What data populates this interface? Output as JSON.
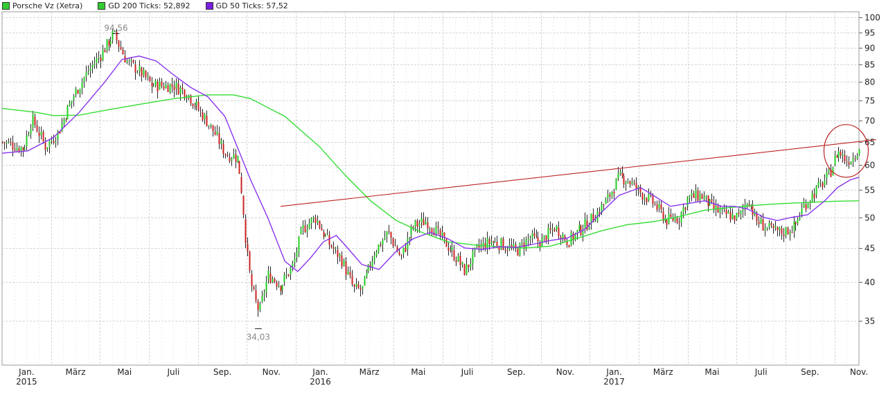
{
  "legend": [
    {
      "label": "Porsche Vz (Xetra)",
      "color": "#33cc33"
    },
    {
      "label": "GD 200 Ticks: 52,892",
      "color": "#33cc33"
    },
    {
      "label": "GD 50 Ticks: 57,52",
      "color": "#7a1fe0"
    }
  ],
  "chart_data": {
    "type": "candlestick",
    "title": "",
    "scale": "log",
    "ylim": [
      30,
      102
    ],
    "y_ticks": [
      100,
      95,
      90,
      85,
      80,
      75,
      70,
      65,
      60,
      55,
      50,
      45,
      40,
      35
    ],
    "x_tick_labels": [
      {
        "label": "Jan.",
        "year": "2015"
      },
      {
        "label": "März",
        "year": ""
      },
      {
        "label": "Mai",
        "year": ""
      },
      {
        "label": "Juli",
        "year": ""
      },
      {
        "label": "Sep.",
        "year": ""
      },
      {
        "label": "Nov.",
        "year": ""
      },
      {
        "label": "Jan.",
        "year": "2016"
      },
      {
        "label": "März",
        "year": ""
      },
      {
        "label": "Mai",
        "year": ""
      },
      {
        "label": "Juli",
        "year": ""
      },
      {
        "label": "Sep.",
        "year": ""
      },
      {
        "label": "Nov.",
        "year": ""
      },
      {
        "label": "Jan.",
        "year": "2017"
      },
      {
        "label": "März",
        "year": ""
      },
      {
        "label": "Mai",
        "year": ""
      },
      {
        "label": "Juli",
        "year": ""
      },
      {
        "label": "Sep.",
        "year": ""
      },
      {
        "label": "Nov.",
        "year": ""
      }
    ],
    "annotations": [
      {
        "text": "94,56",
        "kind": "high"
      },
      {
        "text": "34,03",
        "kind": "low"
      }
    ],
    "colors": {
      "up": "#22cc22",
      "down": "#cc2222",
      "gd200": "#33dd33",
      "gd50": "#8833ee",
      "trend": "#bb2222"
    },
    "price_path": [
      [
        0,
        65
      ],
      [
        0.025,
        63.5
      ],
      [
        0.035,
        70.5
      ],
      [
        0.05,
        64
      ],
      [
        0.065,
        67
      ],
      [
        0.075,
        72
      ],
      [
        0.085,
        77
      ],
      [
        0.1,
        83
      ],
      [
        0.115,
        88
      ],
      [
        0.13,
        94.5
      ],
      [
        0.145,
        86
      ],
      [
        0.16,
        83
      ],
      [
        0.175,
        79
      ],
      [
        0.2,
        79
      ],
      [
        0.215,
        77
      ],
      [
        0.23,
        72.5
      ],
      [
        0.245,
        68
      ],
      [
        0.26,
        62.5
      ],
      [
        0.275,
        61.5
      ],
      [
        0.28,
        54
      ],
      [
        0.285,
        45
      ],
      [
        0.29,
        40
      ],
      [
        0.295,
        37.5
      ],
      [
        0.3,
        36
      ],
      [
        0.31,
        41
      ],
      [
        0.325,
        39.5
      ],
      [
        0.34,
        42.5
      ],
      [
        0.35,
        48
      ],
      [
        0.365,
        50
      ],
      [
        0.38,
        46
      ],
      [
        0.395,
        43.5
      ],
      [
        0.41,
        39
      ],
      [
        0.42,
        39
      ],
      [
        0.435,
        44.5
      ],
      [
        0.45,
        47.5
      ],
      [
        0.465,
        43.5
      ],
      [
        0.48,
        48.5
      ],
      [
        0.495,
        49.5
      ],
      [
        0.51,
        47
      ],
      [
        0.525,
        44.5
      ],
      [
        0.54,
        41.5
      ],
      [
        0.555,
        45
      ],
      [
        0.57,
        46
      ],
      [
        0.585,
        45.5
      ],
      [
        0.6,
        44.5
      ],
      [
        0.615,
        46.5
      ],
      [
        0.63,
        46
      ],
      [
        0.645,
        48.5
      ],
      [
        0.66,
        46
      ],
      [
        0.675,
        48
      ],
      [
        0.69,
        50
      ],
      [
        0.705,
        53
      ],
      [
        0.72,
        57.5
      ],
      [
        0.73,
        57
      ],
      [
        0.745,
        54.5
      ],
      [
        0.76,
        52.5
      ],
      [
        0.775,
        49.5
      ],
      [
        0.79,
        50
      ],
      [
        0.8,
        53.5
      ],
      [
        0.815,
        54
      ],
      [
        0.83,
        51.5
      ],
      [
        0.845,
        50.5
      ],
      [
        0.86,
        50
      ],
      [
        0.87,
        53.5
      ],
      [
        0.88,
        49.5
      ],
      [
        0.895,
        48
      ],
      [
        0.91,
        47.5
      ],
      [
        0.925,
        48.5
      ],
      [
        0.935,
        52
      ],
      [
        0.95,
        55
      ],
      [
        0.965,
        58
      ],
      [
        0.975,
        63
      ],
      [
        0.985,
        61
      ],
      [
        0.993,
        61.5
      ],
      [
        1,
        64
      ]
    ],
    "gd200_path": [
      [
        0,
        73
      ],
      [
        0.04,
        72
      ],
      [
        0.06,
        71.2
      ],
      [
        0.09,
        71.3
      ],
      [
        0.12,
        72.5
      ],
      [
        0.16,
        74
      ],
      [
        0.2,
        75.5
      ],
      [
        0.24,
        76.5
      ],
      [
        0.27,
        76.5
      ],
      [
        0.29,
        75.5
      ],
      [
        0.33,
        71
      ],
      [
        0.37,
        64
      ],
      [
        0.4,
        58
      ],
      [
        0.43,
        53
      ],
      [
        0.46,
        49.5
      ],
      [
        0.49,
        47.5
      ],
      [
        0.52,
        46
      ],
      [
        0.55,
        45.5
      ],
      [
        0.58,
        45.2
      ],
      [
        0.61,
        45
      ],
      [
        0.64,
        45.3
      ],
      [
        0.67,
        46.5
      ],
      [
        0.7,
        47.8
      ],
      [
        0.73,
        48.8
      ],
      [
        0.76,
        49.3
      ],
      [
        0.79,
        50.2
      ],
      [
        0.82,
        51.3
      ],
      [
        0.85,
        51.8
      ],
      [
        0.88,
        52.2
      ],
      [
        0.91,
        52.5
      ],
      [
        0.94,
        52.7
      ],
      [
        0.97,
        52.9
      ],
      [
        1,
        53
      ]
    ],
    "gd50_path": [
      [
        0,
        62.5
      ],
      [
        0.03,
        63
      ],
      [
        0.06,
        66
      ],
      [
        0.09,
        72
      ],
      [
        0.12,
        80
      ],
      [
        0.14,
        86.5
      ],
      [
        0.16,
        87.5
      ],
      [
        0.18,
        86
      ],
      [
        0.2,
        82
      ],
      [
        0.22,
        78.5
      ],
      [
        0.24,
        76
      ],
      [
        0.26,
        71
      ],
      [
        0.27,
        66
      ],
      [
        0.29,
        57
      ],
      [
        0.31,
        50
      ],
      [
        0.33,
        43
      ],
      [
        0.345,
        41.5
      ],
      [
        0.36,
        43.5
      ],
      [
        0.375,
        46
      ],
      [
        0.39,
        47
      ],
      [
        0.4,
        45.5
      ],
      [
        0.42,
        42.5
      ],
      [
        0.44,
        41.8
      ],
      [
        0.46,
        44.5
      ],
      [
        0.48,
        46.5
      ],
      [
        0.5,
        47.5
      ],
      [
        0.52,
        46.5
      ],
      [
        0.54,
        45
      ],
      [
        0.56,
        44.8
      ],
      [
        0.58,
        45.2
      ],
      [
        0.6,
        45.1
      ],
      [
        0.62,
        45.6
      ],
      [
        0.64,
        46.2
      ],
      [
        0.66,
        46.6
      ],
      [
        0.68,
        48
      ],
      [
        0.7,
        51
      ],
      [
        0.72,
        54
      ],
      [
        0.745,
        55.5
      ],
      [
        0.76,
        54
      ],
      [
        0.78,
        52
      ],
      [
        0.8,
        52.5
      ],
      [
        0.82,
        53
      ],
      [
        0.84,
        52
      ],
      [
        0.855,
        52
      ],
      [
        0.87,
        51.5
      ],
      [
        0.89,
        50
      ],
      [
        0.905,
        49.5
      ],
      [
        0.92,
        50
      ],
      [
        0.94,
        50.5
      ],
      [
        0.96,
        53
      ],
      [
        0.975,
        55.5
      ],
      [
        0.99,
        57
      ],
      [
        1,
        57.5
      ]
    ],
    "trendline": {
      "start": {
        "x": 0.325,
        "y": 52
      },
      "end": {
        "x": 1.02,
        "y": 65.5
      }
    },
    "highlight_circle": {
      "x": 0.985,
      "y": 63
    }
  }
}
